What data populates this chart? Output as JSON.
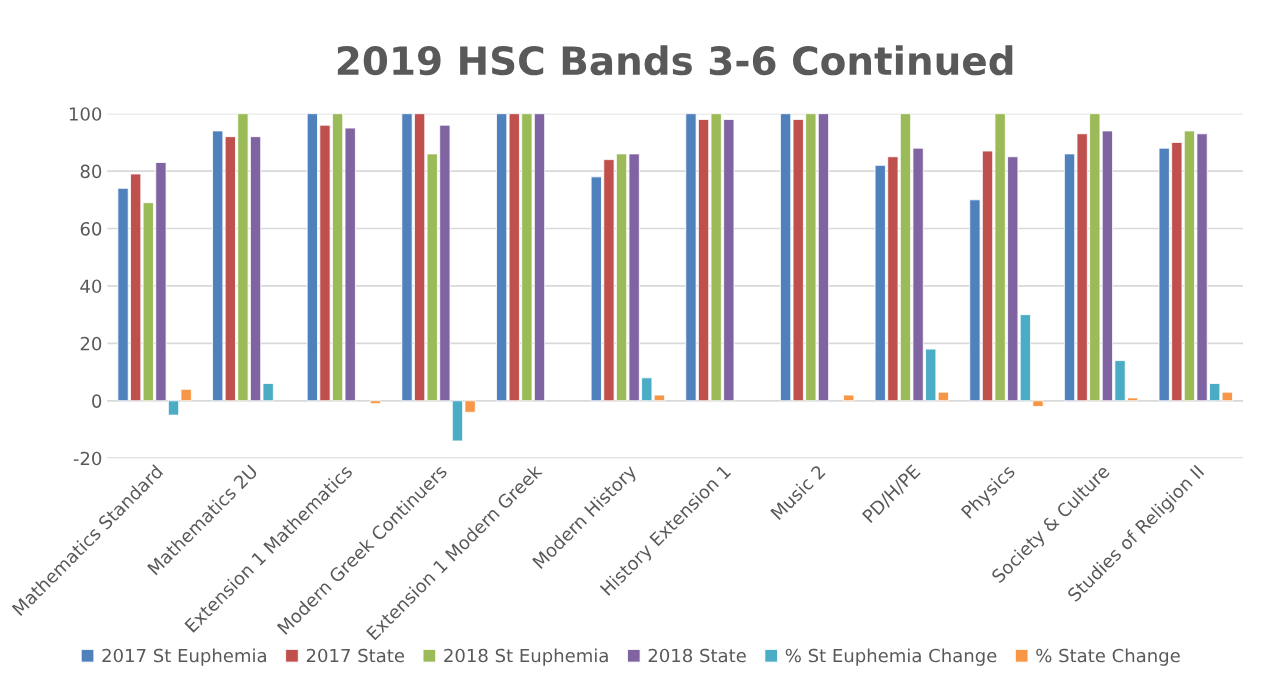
{
  "chart_data": {
    "type": "bar",
    "title": "2019 HSC Bands 3-6 Continued",
    "categories": [
      "Mathematics Standard",
      "Mathematics 2U",
      "Extension 1 Mathematics",
      "Modern Greek Continuers",
      "Extension 1 Modern Greek",
      "Modern History",
      "History Extension 1",
      "Music 2",
      "PD/H/PE",
      "Physics",
      "Society & Culture",
      "Studies of Religion II"
    ],
    "series": [
      {
        "name": "2017 St Euphemia",
        "color": "#4f81bd",
        "values": [
          74,
          94,
          100,
          100,
          100,
          78,
          100,
          100,
          82,
          70,
          86,
          88
        ]
      },
      {
        "name": "2017 State",
        "color": "#c0504d",
        "values": [
          79,
          92,
          96,
          100,
          100,
          84,
          98,
          98,
          85,
          87,
          93,
          90
        ]
      },
      {
        "name": "2018 St Euphemia",
        "color": "#9bbb59",
        "values": [
          69,
          100,
          100,
          86,
          100,
          86,
          100,
          100,
          100,
          100,
          100,
          94
        ]
      },
      {
        "name": "2018 State",
        "color": "#8064a2",
        "values": [
          83,
          92,
          95,
          96,
          100,
          86,
          98,
          100,
          88,
          85,
          94,
          93
        ]
      },
      {
        "name": "% St Euphemia Change",
        "color": "#4bacc6",
        "values": [
          -5,
          6,
          null,
          -14,
          null,
          8,
          null,
          null,
          18,
          30,
          14,
          6
        ]
      },
      {
        "name": "% State Change",
        "color": "#f79646",
        "values": [
          4,
          null,
          -1,
          -4,
          null,
          2,
          null,
          2,
          3,
          -2,
          1,
          3
        ]
      }
    ],
    "ylim": [
      -20,
      100
    ],
    "yticks": [
      -20,
      0,
      20,
      40,
      60,
      80,
      100
    ],
    "grid": "y",
    "legend": "bottom"
  }
}
